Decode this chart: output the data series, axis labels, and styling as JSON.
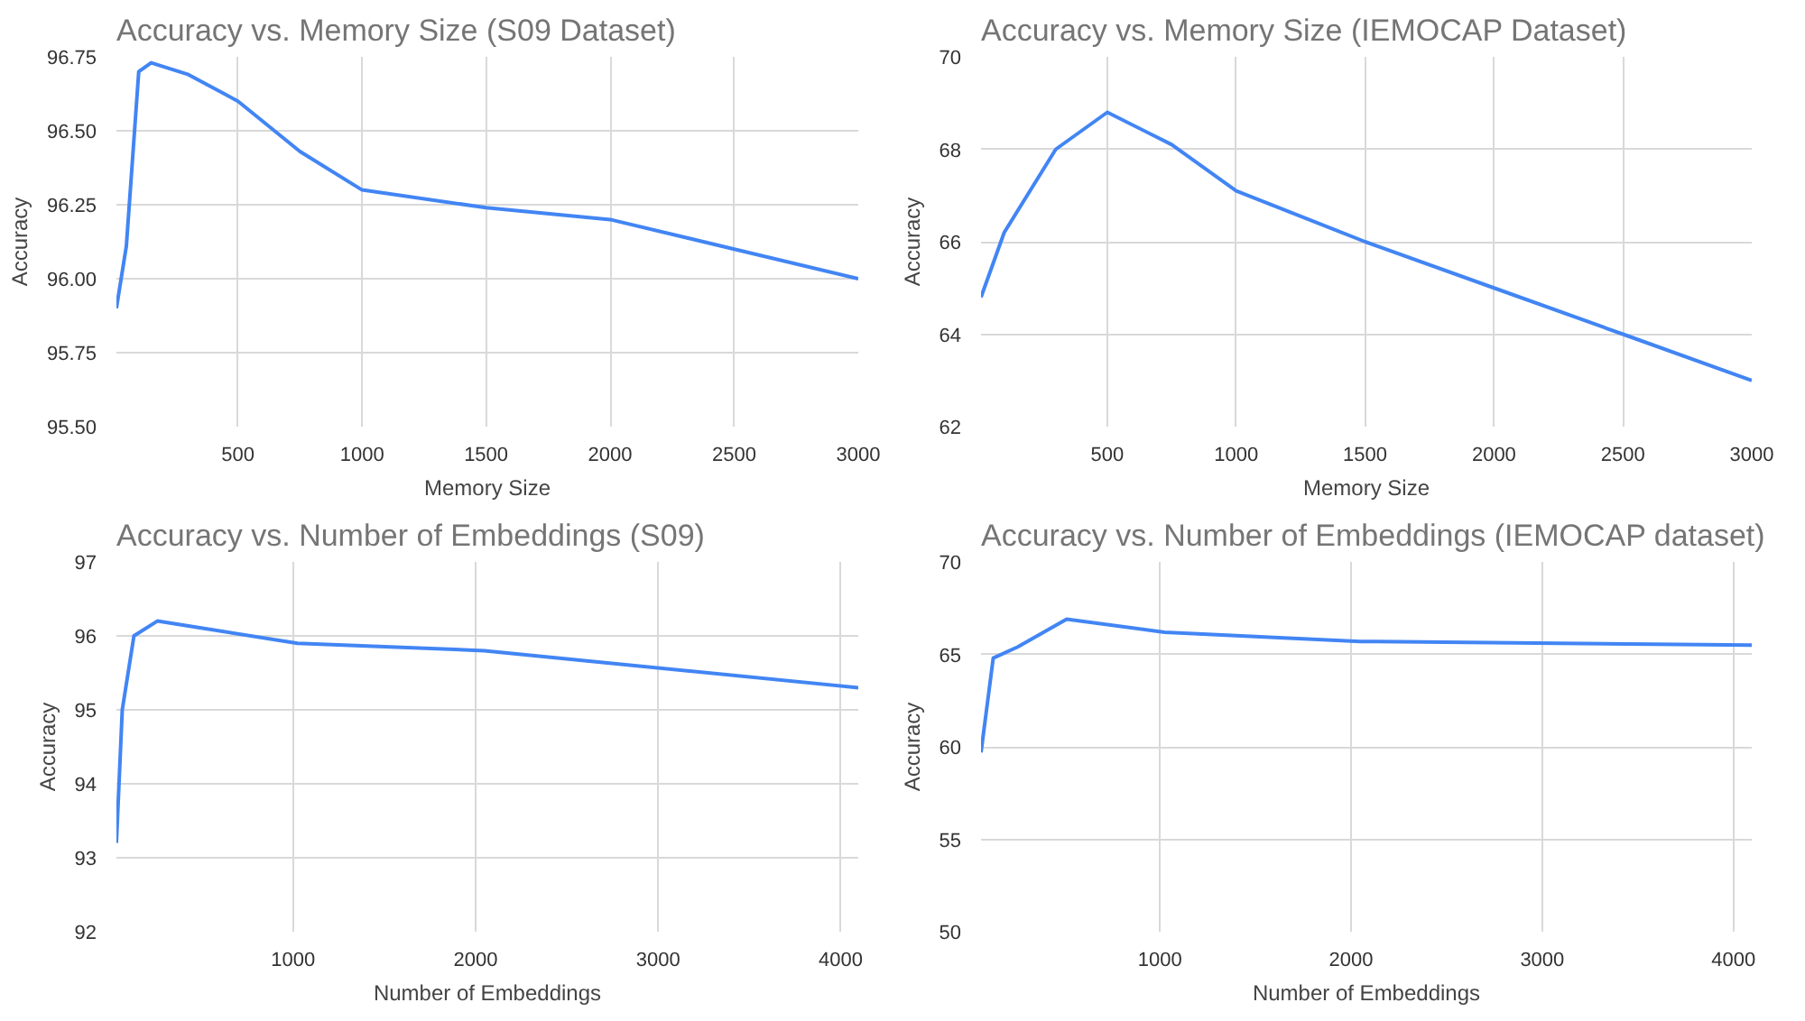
{
  "chart_data": [
    {
      "type": "line",
      "title": "Accuracy vs. Memory Size (S09 Dataset)",
      "xlabel": "Memory Size",
      "ylabel": "Accuracy",
      "x": [
        10,
        50,
        100,
        150,
        300,
        500,
        750,
        1000,
        1500,
        2000,
        2500,
        3000
      ],
      "series": [
        {
          "color": "#4285f4",
          "values": [
            95.9,
            96.11,
            96.7,
            96.73,
            96.69,
            96.6,
            96.43,
            96.3,
            96.24,
            96.2,
            96.1,
            96.0
          ]
        }
      ],
      "xlim": [
        10,
        3000
      ],
      "ylim": [
        95.5,
        96.75
      ],
      "xticks": [
        500,
        1000,
        1500,
        2000,
        2500,
        3000
      ],
      "yticks": [
        {
          "value": 95.5,
          "label": "95.50"
        },
        {
          "value": 95.75,
          "label": "95.75"
        },
        {
          "value": 96,
          "label": "96.00"
        },
        {
          "value": 96.25,
          "label": "96.25"
        },
        {
          "value": 96.5,
          "label": "96.50"
        },
        {
          "value": 96.75,
          "label": "96.75"
        }
      ],
      "grid": true
    },
    {
      "type": "line",
      "title": "Accuracy vs. Memory Size (IEMOCAP Dataset)",
      "xlabel": "Memory Size",
      "ylabel": "Accuracy",
      "x": [
        10,
        100,
        300,
        500,
        750,
        1000,
        1500,
        2000,
        2500,
        3000
      ],
      "series": [
        {
          "color": "#4285f4",
          "values": [
            64.8,
            66.2,
            68.0,
            68.8,
            68.1,
            67.1,
            66.0,
            65.0,
            64.0,
            63.0
          ]
        }
      ],
      "xlim": [
        10,
        3000
      ],
      "ylim": [
        62,
        70
      ],
      "xticks": [
        500,
        1000,
        1500,
        2000,
        2500,
        3000
      ],
      "yticks": [
        62,
        64,
        66,
        68,
        70
      ],
      "grid": true
    },
    {
      "type": "line",
      "title": "Accuracy vs. Number of Embeddings (S09)",
      "xlabel": "Number of Embeddings",
      "ylabel": "Accuracy",
      "x": [
        32,
        64,
        128,
        256,
        512,
        1024,
        2048,
        4096
      ],
      "series": [
        {
          "color": "#4285f4",
          "values": [
            93.2,
            95.0,
            96.0,
            96.2,
            96.1,
            95.9,
            95.8,
            95.3
          ]
        }
      ],
      "xlim": [
        32,
        4096
      ],
      "ylim": [
        92,
        97
      ],
      "xticks": [
        1000,
        2000,
        3000,
        4000
      ],
      "yticks": [
        92,
        93,
        94,
        95,
        96,
        97
      ],
      "grid": true
    },
    {
      "type": "line",
      "title": "Accuracy vs. Number of Embeddings (IEMOCAP dataset)",
      "xlabel": "Number of Embeddings",
      "ylabel": "Accuracy",
      "x": [
        64,
        128,
        256,
        512,
        1024,
        2048,
        4096
      ],
      "series": [
        {
          "color": "#4285f4",
          "values": [
            59.7,
            64.8,
            65.4,
            66.9,
            66.2,
            65.7,
            65.5
          ]
        }
      ],
      "xlim": [
        64,
        4096
      ],
      "ylim": [
        50,
        70
      ],
      "xticks": [
        1000,
        2000,
        3000,
        4000
      ],
      "yticks": [
        50,
        55,
        60,
        65,
        70
      ],
      "grid": true
    }
  ]
}
